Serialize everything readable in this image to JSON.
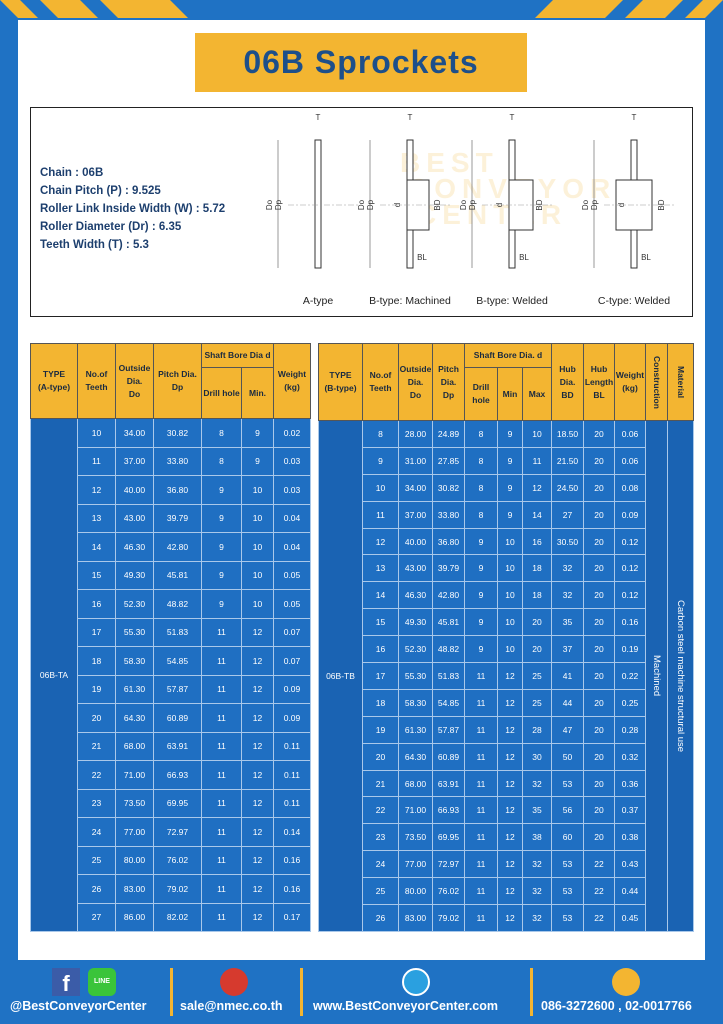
{
  "title": "06B Sprockets",
  "specs": [
    "Chain : 06B",
    "Chain Pitch (P) : 9.525",
    "Roller Link Inside Width (W) : 5.72",
    "Roller Diameter (Dr) : 6.35",
    "Teeth Width (T) : 5.3"
  ],
  "diagram": {
    "watermark": [
      "BEST",
      "CONVEYOR",
      "CENTER"
    ],
    "types": [
      {
        "caption": "A-type",
        "labels": [
          "T",
          "Do",
          "Dp"
        ]
      },
      {
        "caption": "B-type: Machined",
        "labels": [
          "T",
          "Do",
          "Dp",
          "d",
          "BD",
          "BL"
        ]
      },
      {
        "caption": "B-type: Welded",
        "labels": [
          "T",
          "Do",
          "Dp",
          "d",
          "BD",
          "BL"
        ]
      },
      {
        "caption": "C-type: Welded",
        "labels": [
          "T",
          "Do",
          "Dp",
          "d",
          "BD",
          "BL"
        ]
      }
    ]
  },
  "table_a": {
    "header": {
      "type": [
        "TYPE",
        "(A-type)"
      ],
      "teeth": [
        "No.of",
        "Teeth"
      ],
      "outside": [
        "Outside",
        "Dia.",
        "Do"
      ],
      "pitch": [
        "Pitch Dia.",
        "Dp"
      ],
      "bore": "Shaft Bore Dia d",
      "drill": "Drill hole",
      "min": "Min.",
      "weight": [
        "Weight",
        "(kg)"
      ]
    },
    "type": "06B-TA",
    "rows": [
      [
        "10",
        "34.00",
        "30.82",
        "8",
        "9",
        "0.02"
      ],
      [
        "11",
        "37.00",
        "33.80",
        "8",
        "9",
        "0.03"
      ],
      [
        "12",
        "40.00",
        "36.80",
        "9",
        "10",
        "0.03"
      ],
      [
        "13",
        "43.00",
        "39.79",
        "9",
        "10",
        "0.04"
      ],
      [
        "14",
        "46.30",
        "42.80",
        "9",
        "10",
        "0.04"
      ],
      [
        "15",
        "49.30",
        "45.81",
        "9",
        "10",
        "0.05"
      ],
      [
        "16",
        "52.30",
        "48.82",
        "9",
        "10",
        "0.05"
      ],
      [
        "17",
        "55.30",
        "51.83",
        "11",
        "12",
        "0.07"
      ],
      [
        "18",
        "58.30",
        "54.85",
        "11",
        "12",
        "0.07"
      ],
      [
        "19",
        "61.30",
        "57.87",
        "11",
        "12",
        "0.09"
      ],
      [
        "20",
        "64.30",
        "60.89",
        "11",
        "12",
        "0.09"
      ],
      [
        "21",
        "68.00",
        "63.91",
        "11",
        "12",
        "0.11"
      ],
      [
        "22",
        "71.00",
        "66.93",
        "11",
        "12",
        "0.11"
      ],
      [
        "23",
        "73.50",
        "69.95",
        "11",
        "12",
        "0.11"
      ],
      [
        "24",
        "77.00",
        "72.97",
        "11",
        "12",
        "0.14"
      ],
      [
        "25",
        "80.00",
        "76.02",
        "11",
        "12",
        "0.16"
      ],
      [
        "26",
        "83.00",
        "79.02",
        "11",
        "12",
        "0.16"
      ],
      [
        "27",
        "86.00",
        "82.02",
        "11",
        "12",
        "0.17"
      ]
    ]
  },
  "table_b": {
    "header": {
      "type": [
        "TYPE",
        "(B-type)"
      ],
      "teeth": [
        "No.of",
        "Teeth"
      ],
      "outside": [
        "Outside",
        "Dia.",
        "Do"
      ],
      "pitch": [
        "Pitch",
        "Dia.",
        "Dp"
      ],
      "bore": "Shaft Bore Dia. d",
      "drill": "Drill hole",
      "min": "Min",
      "max": "Max",
      "hub_dia": [
        "Hub",
        "Dia.",
        "BD"
      ],
      "hub_len": [
        "Hub",
        "Length",
        "BL"
      ],
      "weight": [
        "Weight",
        "(kg)"
      ],
      "construction": "Construction",
      "material": "Material"
    },
    "type": "06B-TB",
    "construction": "Machined",
    "material": "Carbon steel machine structural use",
    "rows": [
      [
        "8",
        "28.00",
        "24.89",
        "8",
        "9",
        "10",
        "18.50",
        "20",
        "0.06"
      ],
      [
        "9",
        "31.00",
        "27.85",
        "8",
        "9",
        "11",
        "21.50",
        "20",
        "0.06"
      ],
      [
        "10",
        "34.00",
        "30.82",
        "8",
        "9",
        "12",
        "24.50",
        "20",
        "0.08"
      ],
      [
        "11",
        "37.00",
        "33.80",
        "8",
        "9",
        "14",
        "27",
        "20",
        "0.09"
      ],
      [
        "12",
        "40.00",
        "36.80",
        "9",
        "10",
        "16",
        "30.50",
        "20",
        "0.12"
      ],
      [
        "13",
        "43.00",
        "39.79",
        "9",
        "10",
        "18",
        "32",
        "20",
        "0.12"
      ],
      [
        "14",
        "46.30",
        "42.80",
        "9",
        "10",
        "18",
        "32",
        "20",
        "0.12"
      ],
      [
        "15",
        "49.30",
        "45.81",
        "9",
        "10",
        "20",
        "35",
        "20",
        "0.16"
      ],
      [
        "16",
        "52.30",
        "48.82",
        "9",
        "10",
        "20",
        "37",
        "20",
        "0.19"
      ],
      [
        "17",
        "55.30",
        "51.83",
        "11",
        "12",
        "25",
        "41",
        "20",
        "0.22"
      ],
      [
        "18",
        "58.30",
        "54.85",
        "11",
        "12",
        "25",
        "44",
        "20",
        "0.25"
      ],
      [
        "19",
        "61.30",
        "57.87",
        "11",
        "12",
        "28",
        "47",
        "20",
        "0.28"
      ],
      [
        "20",
        "64.30",
        "60.89",
        "11",
        "12",
        "30",
        "50",
        "20",
        "0.32"
      ],
      [
        "21",
        "68.00",
        "63.91",
        "11",
        "12",
        "32",
        "53",
        "20",
        "0.36"
      ],
      [
        "22",
        "71.00",
        "66.93",
        "11",
        "12",
        "35",
        "56",
        "20",
        "0.37"
      ],
      [
        "23",
        "73.50",
        "69.95",
        "11",
        "12",
        "38",
        "60",
        "20",
        "0.38"
      ],
      [
        "24",
        "77.00",
        "72.97",
        "11",
        "12",
        "32",
        "53",
        "22",
        "0.43"
      ],
      [
        "25",
        "80.00",
        "76.02",
        "11",
        "12",
        "32",
        "53",
        "22",
        "0.44"
      ],
      [
        "26",
        "83.00",
        "79.02",
        "11",
        "12",
        "32",
        "53",
        "22",
        "0.45"
      ]
    ]
  },
  "footer": {
    "facebook": "f",
    "line": "LINE",
    "items": [
      "@BestConveyorCenter",
      "sale@nmec.co.th",
      "www.BestConveyorCenter.com",
      "086-3272600 , 02-0017766"
    ]
  }
}
